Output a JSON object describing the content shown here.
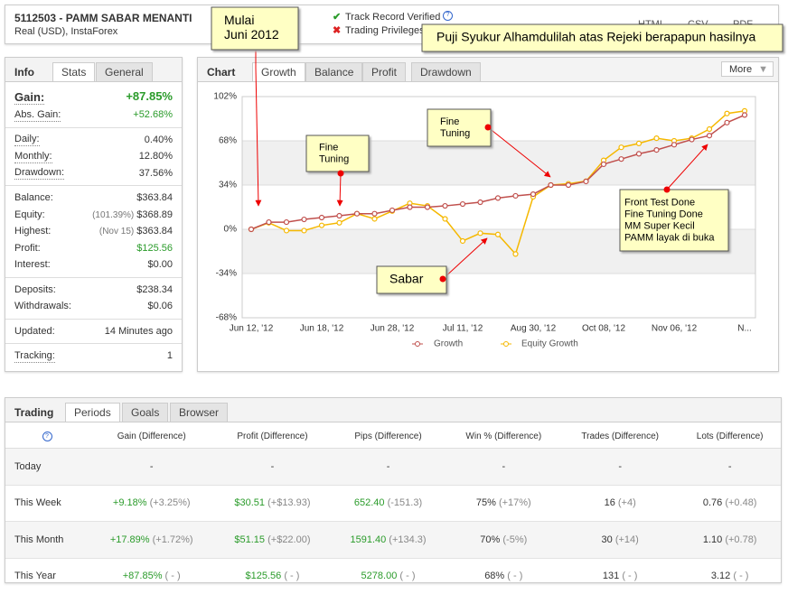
{
  "header": {
    "title": "5112503 - PAMM SABAR MENANTI",
    "subtitle": "Real (USD), InstaForex",
    "verified": "Track Record Verified",
    "privileges": "Trading Privileges",
    "exports": [
      "HTML",
      "CSV",
      "PDF"
    ]
  },
  "info": {
    "label": "Info",
    "tabs": [
      "Stats",
      "General"
    ],
    "groups": [
      [
        {
          "label": "Gain:",
          "value": "+87.85%",
          "color": "#2a9b2a"
        },
        {
          "label": "Abs. Gain:",
          "value": "+52.68%",
          "color": "#2a9b2a"
        }
      ],
      [
        {
          "label": "Daily:",
          "value": "0.40%"
        },
        {
          "label": "Monthly:",
          "value": "12.80%"
        },
        {
          "label": "Drawdown:",
          "value": "37.56%"
        }
      ],
      [
        {
          "label": "Balance:",
          "value": "$363.84"
        },
        {
          "label": "Equity:",
          "note": "(101.39%)",
          "value": "$368.89"
        },
        {
          "label": "Highest:",
          "note": "(Nov 15)",
          "value": "$363.84"
        },
        {
          "label": "Profit:",
          "value": "$125.56",
          "color": "#2a9b2a"
        },
        {
          "label": "Interest:",
          "value": "$0.00"
        }
      ],
      [
        {
          "label": "Deposits:",
          "value": "$238.34"
        },
        {
          "label": "Withdrawals:",
          "value": "$0.06"
        }
      ],
      [
        {
          "label": "Updated:",
          "value": "14 Minutes ago"
        }
      ],
      [
        {
          "label": "Tracking:",
          "value": "1"
        }
      ]
    ]
  },
  "chart_panel": {
    "label": "Chart",
    "tabs": [
      "Growth",
      "Balance",
      "Profit",
      "Drawdown"
    ],
    "more": "More"
  },
  "chart_data": {
    "type": "line",
    "categories": [
      "Jun 12, '12",
      null,
      null,
      null,
      "Jun 18, '12",
      null,
      null,
      null,
      "Jun 28, '12",
      null,
      null,
      null,
      "Jul 11, '12",
      null,
      null,
      null,
      "Aug 30, '12",
      null,
      null,
      null,
      "Oct 08, '12",
      null,
      null,
      null,
      "Nov 06, '12",
      null,
      null,
      null,
      "N..."
    ],
    "series": [
      {
        "name": "Growth",
        "color": "#c0504d",
        "values": [
          0,
          5.5,
          5.5,
          7.6,
          9,
          10.4,
          12,
          12,
          14.6,
          17,
          17,
          18,
          19.4,
          20.8,
          24,
          25.7,
          27,
          34,
          34,
          36.8,
          50,
          54,
          58,
          61,
          65,
          69,
          72,
          82,
          87.85
        ]
      },
      {
        "name": "Equity Growth",
        "color": "#f5b800",
        "values": [
          0,
          5,
          -1,
          -1,
          3,
          5,
          12,
          8,
          14,
          20,
          18,
          8,
          -9,
          -3,
          -4,
          -19,
          25,
          34,
          35,
          37,
          53,
          63,
          66,
          70,
          68,
          70,
          77,
          89,
          91
        ]
      }
    ],
    "ylim": [
      -68,
      102
    ],
    "yticks": [
      {
        "value": 102,
        "label": "102%"
      },
      {
        "value": 68,
        "label": "68%"
      },
      {
        "value": 34,
        "label": "34%"
      },
      {
        "value": 0,
        "label": "0%"
      },
      {
        "value": -34,
        "label": "-34%"
      },
      {
        "value": -68,
        "label": "-68%"
      }
    ],
    "legend": "bottom"
  },
  "annotations": [
    {
      "lines": [
        "Mulai",
        "Juni 2012"
      ]
    },
    {
      "lines": [
        "Puji Syukur Alhamdulilah atas Rejeki berapapun hasilnya"
      ]
    },
    {
      "lines": [
        "Fine",
        "Tuning"
      ]
    },
    {
      "lines": [
        "Fine",
        "Tuning"
      ]
    },
    {
      "lines": [
        "Front Test Done",
        "Fine Tuning Done",
        "MM Super Kecil",
        "PAMM layak di buka"
      ]
    },
    {
      "lines": [
        "Sabar"
      ]
    }
  ],
  "trading": {
    "label": "Trading",
    "tabs": [
      "Periods",
      "Goals",
      "Browser"
    ],
    "help": "?",
    "columns": [
      {
        "name": "Gain (Difference)",
        "color": "#2a9b2a"
      },
      {
        "name": "Profit (Difference)",
        "color": "#2a9b2a"
      },
      {
        "name": "Pips (Difference)",
        "color": "#2a9b2a"
      },
      {
        "name": "Win % (Difference)"
      },
      {
        "name": "Trades (Difference)"
      },
      {
        "name": "Lots (Difference)"
      }
    ],
    "rows": [
      {
        "label": "Today",
        "cells": [
          {
            "main": "-"
          },
          {
            "main": "-"
          },
          {
            "main": "-"
          },
          {
            "main": "-"
          },
          {
            "main": "-"
          },
          {
            "main": "-"
          }
        ]
      },
      {
        "label": "This Week",
        "cells": [
          {
            "main": "+9.18%",
            "diff": "(+3.25%)"
          },
          {
            "main": "$30.51",
            "diff": "(+$13.93)"
          },
          {
            "main": "652.40",
            "diff": "(-151.3)"
          },
          {
            "main": "75%",
            "diff": "(+17%)"
          },
          {
            "main": "16",
            "diff": "(+4)"
          },
          {
            "main": "0.76",
            "diff": "(+0.48)"
          }
        ]
      },
      {
        "label": "This Month",
        "cells": [
          {
            "main": "+17.89%",
            "diff": "(+1.72%)"
          },
          {
            "main": "$51.15",
            "diff": "(+$22.00)"
          },
          {
            "main": "1591.40",
            "diff": "(+134.3)"
          },
          {
            "main": "70%",
            "diff": "(-5%)"
          },
          {
            "main": "30",
            "diff": "(+14)"
          },
          {
            "main": "1.10",
            "diff": "(+0.78)"
          }
        ]
      },
      {
        "label": "This Year",
        "cells": [
          {
            "main": "+87.85%",
            "diff": "( - )"
          },
          {
            "main": "$125.56",
            "diff": "( - )"
          },
          {
            "main": "5278.00",
            "diff": "( - )"
          },
          {
            "main": "68%",
            "diff": "( - )"
          },
          {
            "main": "131",
            "diff": "( - )"
          },
          {
            "main": "3.12",
            "diff": "( - )"
          }
        ]
      }
    ]
  }
}
